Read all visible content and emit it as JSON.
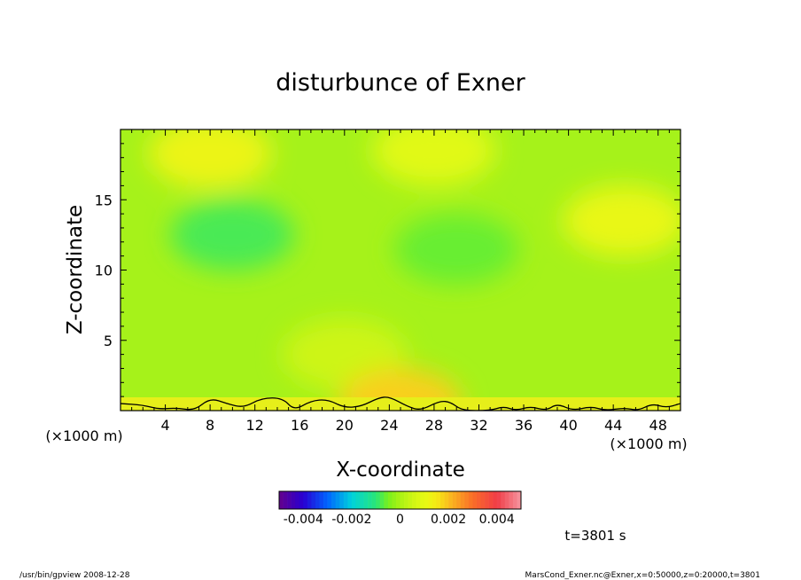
{
  "chart_data": {
    "type": "heatmap",
    "title": "disturbunce of Exner",
    "xlabel": "X-coordinate",
    "ylabel": "Z-coordinate",
    "x_unit": "(×1000 m)",
    "y_unit": "(×1000 m)",
    "xlim": [
      0,
      50
    ],
    "ylim": [
      0,
      20
    ],
    "x_ticks": [
      4,
      8,
      12,
      16,
      20,
      24,
      28,
      32,
      36,
      40,
      44,
      48
    ],
    "y_ticks": [
      5,
      10,
      15
    ],
    "x_tick_labels": [
      "4",
      "8",
      "12",
      "16",
      "20",
      "24",
      "28",
      "32",
      "36",
      "40",
      "44",
      "48"
    ],
    "y_tick_labels": [
      "5",
      "10",
      "15"
    ],
    "grid": false,
    "colorbar": {
      "range": [
        -0.005,
        0.005
      ],
      "tick_labels": [
        "-0.004",
        "-0.002",
        "0",
        "0.002",
        "0.004"
      ],
      "tick_values": [
        -0.004,
        -0.002,
        0,
        0.002,
        0.004
      ]
    },
    "regions": [
      {
        "x": 8,
        "z": 18.3,
        "value": 0.0012
      },
      {
        "x": 28,
        "z": 18.5,
        "value": 0.0009
      },
      {
        "x": 45,
        "z": 13.5,
        "value": 0.0011
      },
      {
        "x": 10,
        "z": 12.5,
        "value": -0.0008
      },
      {
        "x": 30,
        "z": 11.5,
        "value": -0.0006
      },
      {
        "x": 20,
        "z": 4,
        "value": 0.0005
      },
      {
        "x": 25,
        "z": 0.5,
        "value": 0.0018
      }
    ],
    "annotation_time": "t=3801 s"
  },
  "footer": {
    "left": "/usr/bin/gpview  2008-12-28",
    "right": "MarsCond_Exner.nc@Exner,x=0:50000,z=0:20000,t=3801"
  }
}
